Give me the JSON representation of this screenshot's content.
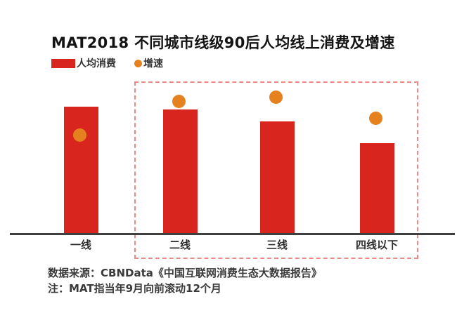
{
  "title": "MAT2018 不同城市线级90后人均线上消费及增速",
  "legend": [
    {
      "label": "人均消费",
      "marker": "square",
      "color": "#d8251e"
    },
    {
      "label": "增速",
      "marker": "circle",
      "color": "#e5821f"
    }
  ],
  "chart_data": {
    "type": "bar",
    "subtype": "bar + point combo (bars for consumption, dots for growth rate)",
    "title": "MAT2018 不同城市线级90后人均线上消费及增速",
    "categories": [
      "一线",
      "二线",
      "三线",
      "四线以下"
    ],
    "series": [
      {
        "name": "人均消费",
        "type": "bar",
        "color": "#d8251e",
        "values_relative": [
          100,
          97.8,
          88.4,
          71.3
        ]
      },
      {
        "name": "增速",
        "type": "point",
        "color": "#e5821f",
        "values_relative": [
          77.9,
          104,
          107.2,
          91
        ]
      }
    ],
    "value_axis_labels_shown": false,
    "data_value_labels_shown": false,
    "grid": false,
    "legend_position": "top-left under title",
    "highlight_box": {
      "style": "dashed",
      "color": "#ec8a86",
      "categories_enclosed": [
        "二线",
        "三线",
        "四线以下"
      ]
    }
  },
  "notes": {
    "source": "数据来源：CBNData《中国互联网消费生态大数据报告》",
    "footnote": "注：MAT指当年9月向前滚动12个月"
  },
  "colors": {
    "bar": "#d8251e",
    "dot": "#e5821f",
    "dashed_box": "#ec8a86",
    "axis": "#3f3f3f",
    "title_text": "#141414",
    "body_text": "#333333",
    "background": "#ffffff"
  }
}
